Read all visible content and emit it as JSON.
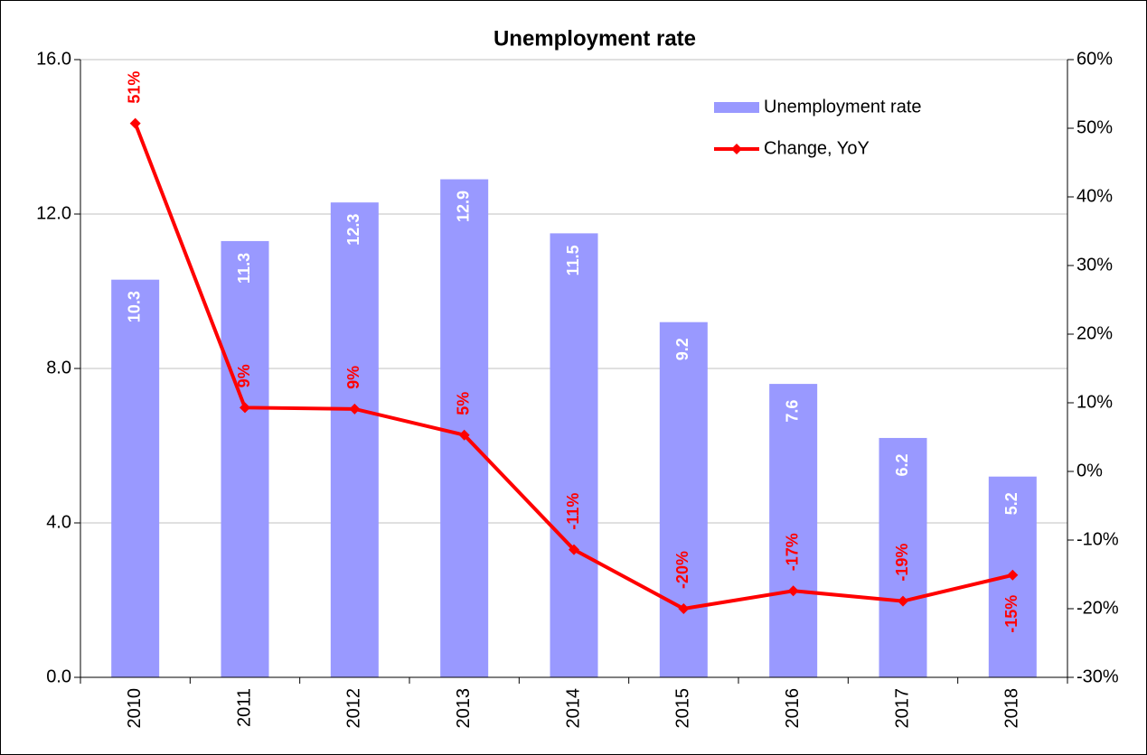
{
  "chart_data": {
    "type": "bar-line",
    "title": "Unemployment rate",
    "categories": [
      "2010",
      "2011",
      "2012",
      "2013",
      "2014",
      "2015",
      "2016",
      "2017",
      "2018"
    ],
    "series": [
      {
        "name": "Unemployment rate",
        "type": "bar",
        "color": "#9999ff",
        "values": [
          10.3,
          11.3,
          12.3,
          12.9,
          11.5,
          9.2,
          7.6,
          6.2,
          5.2
        ]
      },
      {
        "name": "Change, YoY",
        "type": "line",
        "axis": "y2",
        "color": "#ff0000",
        "values": [
          50.7,
          9.3,
          9.1,
          5.3,
          -11.4,
          -20,
          -17.4,
          -18.9,
          -15.1
        ],
        "value_labels": [
          "51%",
          "9%",
          "9%",
          "5%",
          "-11%",
          "-20%",
          "-17%",
          "-19%",
          "-15%"
        ]
      }
    ],
    "ylim": [
      0,
      16
    ],
    "yticks": [
      {
        "value": 0,
        "label": "0.0"
      },
      {
        "value": 4,
        "label": "4.0"
      },
      {
        "value": 8,
        "label": "8.0"
      },
      {
        "value": 12,
        "label": "12.0"
      },
      {
        "value": 16,
        "label": "16.0"
      }
    ],
    "y2lim": [
      -30,
      60
    ],
    "y2ticks": [
      {
        "value": -30,
        "label": "-30%"
      },
      {
        "value": -20,
        "label": "-20%"
      },
      {
        "value": -10,
        "label": "-10%"
      },
      {
        "value": 0,
        "label": "0%"
      },
      {
        "value": 10,
        "label": "10%"
      },
      {
        "value": 20,
        "label": "20%"
      },
      {
        "value": 30,
        "label": "30%"
      },
      {
        "value": 40,
        "label": "40%"
      },
      {
        "value": 50,
        "label": "50%"
      },
      {
        "value": 60,
        "label": "60%"
      }
    ],
    "grid": true,
    "legend": "upper right"
  }
}
